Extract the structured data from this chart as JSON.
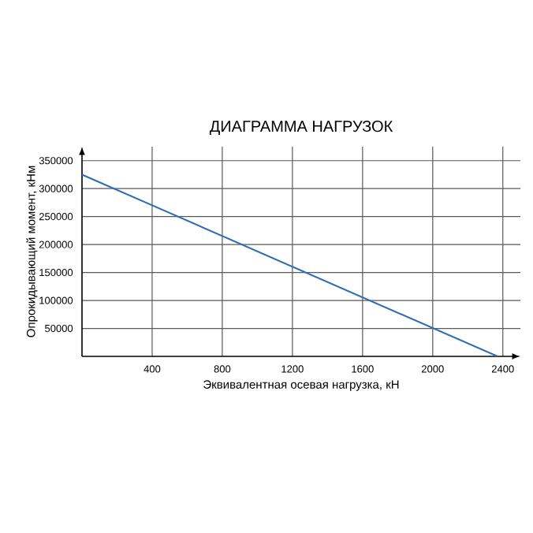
{
  "chart_data": {
    "type": "line",
    "title": "ДИАГРАММА НАГРУЗОК",
    "xlabel": "Эквивалентная осевая нагрузка, кН",
    "ylabel": "Опрокидывающий момент, кНм",
    "x": [
      0,
      2370
    ],
    "series": [
      {
        "color": "#2e6db4",
        "values": [
          325000,
          0
        ]
      }
    ],
    "xlim": [
      0,
      2500
    ],
    "ylim": [
      0,
      375000
    ],
    "xticks": [
      400,
      800,
      1200,
      1600,
      2000,
      2400
    ],
    "yticks": [
      50000,
      100000,
      150000,
      200000,
      250000,
      300000,
      350000
    ],
    "grid": true,
    "marker": "none",
    "line_style": "solid"
  }
}
